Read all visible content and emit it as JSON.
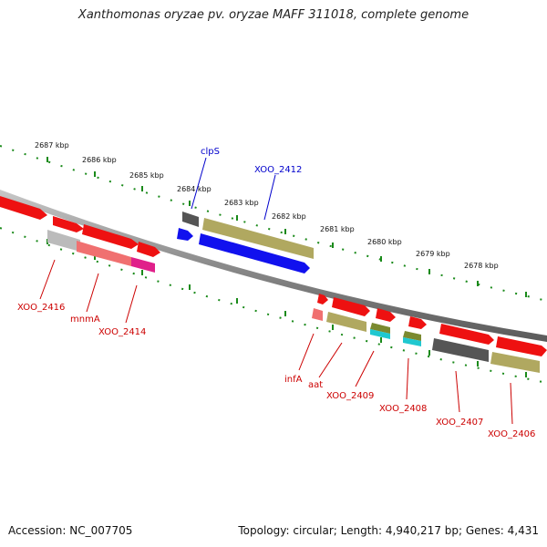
{
  "title": "Xanthomonas oryzae pv. oryzae MAFF 311018, complete genome",
  "footer": {
    "accession": "Accession: NC_007705",
    "topology": "Topology: circular; Length: 4,940,217 bp; Genes: 4,431"
  },
  "colors": {
    "backbone": "#8a8a8a",
    "ticks": "#1a8a1a",
    "label_red": "#cc0000",
    "label_blue": "#0000cc"
  },
  "kbp_labels": [
    "2687 kbp",
    "2686 kbp",
    "2685 kbp",
    "2684 kbp",
    "2683 kbp",
    "2682 kbp",
    "2681 kbp",
    "2680 kbp",
    "2679 kbp",
    "2678 kbp"
  ],
  "genes": [
    {
      "id": "g1",
      "color": "#ee1111",
      "strand": "top"
    },
    {
      "id": "g2",
      "color": "#ee1111",
      "strand": "top"
    },
    {
      "id": "g3",
      "color": "#ee1111",
      "strand": "top"
    },
    {
      "id": "g4",
      "color": "#ee1111",
      "strand": "top"
    },
    {
      "id": "clpS",
      "color": "#555555",
      "strand": "top"
    },
    {
      "id": "XOO_2412_top",
      "color": "#b0a860",
      "strand": "top"
    },
    {
      "id": "g7",
      "color": "#1111ee",
      "strand": "bottom"
    },
    {
      "id": "XOO_2412",
      "color": "#1111ee",
      "strand": "bottom"
    },
    {
      "id": "XOO_2416",
      "color": "#bbbbbb",
      "strand": "bottom"
    },
    {
      "id": "mnmA",
      "color": "#f07070",
      "strand": "bottom"
    },
    {
      "id": "XOO_2414",
      "color": "#e0208a",
      "strand": "bottom"
    },
    {
      "id": "g12",
      "color": "#ee1111",
      "strand": "top"
    },
    {
      "id": "g13",
      "color": "#ee1111",
      "strand": "top"
    },
    {
      "id": "g14",
      "color": "#ee1111",
      "strand": "top"
    },
    {
      "id": "g15",
      "color": "#ee1111",
      "strand": "top"
    },
    {
      "id": "g16",
      "color": "#ee1111",
      "strand": "top"
    },
    {
      "id": "g17",
      "color": "#ee1111",
      "strand": "top"
    },
    {
      "id": "infA",
      "color": "#f07070",
      "strand": "bottom"
    },
    {
      "id": "aat",
      "color": "#b0a860",
      "strand": "bottom"
    },
    {
      "id": "XOO_2409",
      "color": "#7a8a30",
      "strand": "bottom"
    },
    {
      "id": "XOO_2409b",
      "color": "#20c8d0",
      "strand": "bottom"
    },
    {
      "id": "XOO_2408",
      "color": "#7a8a30",
      "strand": "bottom"
    },
    {
      "id": "XOO_2408b",
      "color": "#20c8d0",
      "strand": "bottom"
    },
    {
      "id": "XOO_2407",
      "color": "#555555",
      "strand": "bottom"
    },
    {
      "id": "XOO_2406",
      "color": "#b0a860",
      "strand": "bottom"
    }
  ],
  "gene_labels": [
    {
      "text": "clpS",
      "color": "#0000cc"
    },
    {
      "text": "XOO_2412",
      "color": "#0000cc"
    },
    {
      "text": "XOO_2416",
      "color": "#cc0000"
    },
    {
      "text": "mnmA",
      "color": "#cc0000"
    },
    {
      "text": "XOO_2414",
      "color": "#cc0000"
    },
    {
      "text": "infA",
      "color": "#cc0000"
    },
    {
      "text": "aat",
      "color": "#cc0000"
    },
    {
      "text": "XOO_2409",
      "color": "#cc0000"
    },
    {
      "text": "XOO_2408",
      "color": "#cc0000"
    },
    {
      "text": "XOO_2407",
      "color": "#cc0000"
    },
    {
      "text": "XOO_2406",
      "color": "#cc0000"
    }
  ]
}
